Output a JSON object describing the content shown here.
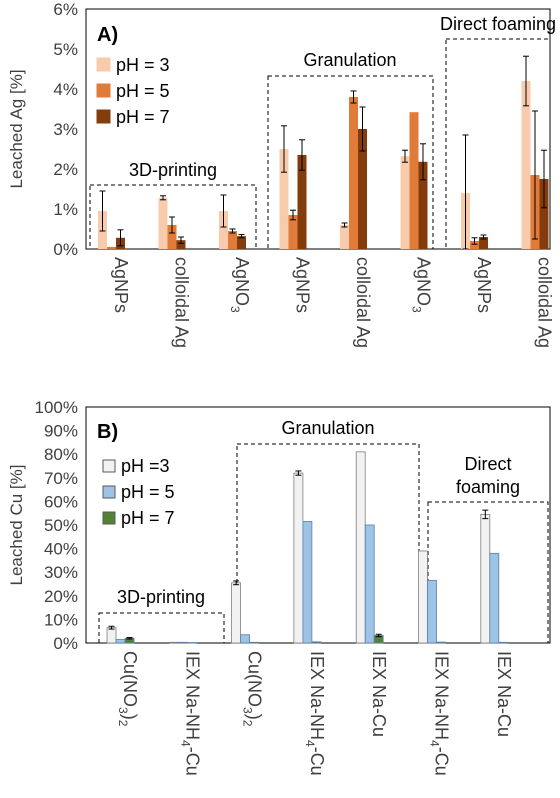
{
  "chart_data": [
    {
      "type": "bar",
      "panel_label": "A)",
      "ylabel": "Leached Ag [%]",
      "ylim": [
        0,
        6
      ],
      "y_ticks": [
        "0%",
        "1%",
        "2%",
        "3%",
        "4%",
        "5%",
        "6%"
      ],
      "categories": [
        "AgNPs",
        "colloidal Ag",
        "AgNO3",
        "AgNPs",
        "colloidal Ag",
        "AgNO3",
        "AgNPs",
        "colloidal Ag"
      ],
      "category_labels": [
        {
          "main": "AgNPs",
          "sub": ""
        },
        {
          "main": "colloidal Ag",
          "sub": ""
        },
        {
          "main": "AgNO",
          "sub": "3"
        },
        {
          "main": "AgNPs",
          "sub": ""
        },
        {
          "main": "colloidal Ag",
          "sub": ""
        },
        {
          "main": "AgNO",
          "sub": "3"
        },
        {
          "main": "AgNPs",
          "sub": ""
        },
        {
          "main": "colloidal Ag",
          "sub": ""
        }
      ],
      "groups": [
        {
          "label": "3D-printing",
          "categories": [
            0,
            2
          ]
        },
        {
          "label": "Granulation",
          "categories": [
            3,
            5
          ]
        },
        {
          "label": "Direct foaming",
          "categories": [
            6,
            7
          ]
        }
      ],
      "legend_position": "top-left",
      "grid": false,
      "series": [
        {
          "name": "pH = 3",
          "color": "#f8cbad",
          "values": [
            0.95,
            1.28,
            0.95,
            2.5,
            0.6,
            2.32,
            1.4,
            4.2
          ],
          "errors": [
            0.5,
            0.05,
            0.4,
            0.58,
            0.05,
            0.15,
            1.45,
            0.62
          ]
        },
        {
          "name": "pH = 5",
          "color": "#e07b39",
          "values": [
            0.05,
            0.6,
            0.45,
            0.85,
            3.8,
            3.42,
            0.2,
            1.85
          ],
          "errors": [
            0.0,
            0.2,
            0.05,
            0.12,
            0.15,
            0.0,
            0.08,
            1.6
          ]
        },
        {
          "name": "pH = 7",
          "color": "#843c0c",
          "values": [
            0.28,
            0.22,
            0.32,
            2.35,
            3.0,
            2.18,
            0.3,
            1.75
          ],
          "errors": [
            0.2,
            0.08,
            0.04,
            0.38,
            0.55,
            0.45,
            0.05,
            0.72
          ]
        }
      ]
    },
    {
      "type": "bar",
      "panel_label": "B)",
      "ylabel": "Leached Cu [%]",
      "ylim": [
        0,
        100
      ],
      "y_ticks": [
        "0%",
        "10%",
        "20%",
        "30%",
        "40%",
        "50%",
        "60%",
        "70%",
        "80%",
        "90%",
        "100%"
      ],
      "categories": [
        "Cu(NO3)2",
        "IEX Na-NH4-Cu",
        "Cu(NO3)2",
        "IEX Na-NH4-Cu",
        "IEX Na-Cu",
        "IEX Na-NH4-Cu",
        "IEX Na-Cu"
      ],
      "category_labels": [
        {
          "main": "Cu(NO",
          "sub": "3",
          "tail": ")",
          "sub2": "2",
          "tail2": ""
        },
        {
          "main": "IEX Na-NH",
          "sub": "4",
          "tail": "-Cu",
          "sub2": "",
          "tail2": ""
        },
        {
          "main": "Cu(NO",
          "sub": "3",
          "tail": ")",
          "sub2": "2",
          "tail2": ""
        },
        {
          "main": "IEX Na-NH",
          "sub": "4",
          "tail": "-Cu",
          "sub2": "",
          "tail2": ""
        },
        {
          "main": "IEX Na-Cu",
          "sub": "",
          "tail": "",
          "sub2": "",
          "tail2": ""
        },
        {
          "main": "IEX Na-NH",
          "sub": "4",
          "tail": "-Cu",
          "sub2": "",
          "tail2": ""
        },
        {
          "main": "IEX Na-Cu",
          "sub": "",
          "tail": "",
          "sub2": "",
          "tail2": ""
        }
      ],
      "groups": [
        {
          "label": "3D-printing",
          "categories": [
            0,
            1
          ]
        },
        {
          "label": "Granulation",
          "categories": [
            2,
            4
          ]
        },
        {
          "label": "Direct\nfoaming",
          "categories": [
            5,
            6
          ]
        }
      ],
      "legend_position": "top-left",
      "grid": false,
      "series": [
        {
          "name": "pH  =3",
          "color": "#f2f2f2",
          "values": [
            6.5,
            0.3,
            25.5,
            72,
            81,
            39,
            54.5
          ],
          "errors": [
            0.6,
            0.0,
            0.8,
            0.9,
            0.0,
            0.0,
            1.8
          ]
        },
        {
          "name": "pH = 5",
          "color": "#9dc3e6",
          "values": [
            1.5,
            0.3,
            3.5,
            51.5,
            50,
            26.5,
            38
          ],
          "errors": [
            0.0,
            0.0,
            0.0,
            0.0,
            0.0,
            0.0,
            0.0
          ]
        },
        {
          "name": "pH = 7",
          "color": "#548235",
          "values": [
            2.0,
            0.2,
            0.3,
            0.5,
            3.2,
            0.4,
            0.3
          ],
          "errors": [
            0.3,
            0.0,
            0.0,
            0.0,
            0.5,
            0.0,
            0.0
          ]
        }
      ]
    }
  ]
}
